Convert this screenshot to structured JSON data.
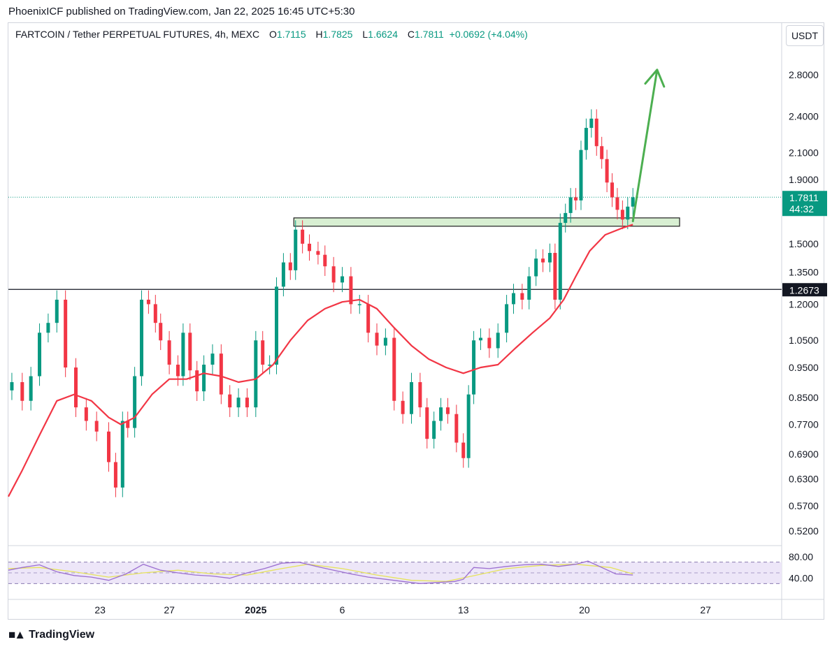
{
  "header": {
    "publisher_line": "PhoenixICF published on TradingView.com, Jan 22, 2025 16:45 UTC+5:30"
  },
  "legend": {
    "symbol": "FARTCOIN / Tether PERPETUAL FUTURES, 4h, MEXC",
    "open_label": "O",
    "open": "1.7115",
    "high_label": "H",
    "high": "1.7825",
    "low_label": "L",
    "low": "1.6624",
    "close_label": "C",
    "close": "1.7811",
    "change": "+0.0692 (+4.04%)"
  },
  "currency_button": "USDT",
  "price_badge": {
    "price": "1.7811",
    "countdown": "44:32"
  },
  "level_badge": "1.2673",
  "footer": {
    "brand": "TradingView"
  },
  "colors": {
    "up": "#089981",
    "down": "#f23645",
    "ma": "#f23645",
    "arrow": "#4caf50",
    "rsi": "#9c6fd0",
    "rsi_ma": "#e6e35a"
  },
  "chart_data": {
    "type": "candlestick",
    "instrument": "FARTCOIN / Tether PERPETUAL FUTURES",
    "timeframe": "4h",
    "exchange": "MEXC",
    "y_scale": "log",
    "y_ticks": [
      "2.8000",
      "2.4000",
      "2.1000",
      "1.9000",
      "1.5000",
      "1.3500",
      "1.2000",
      "1.0500",
      "0.9500",
      "0.8500",
      "0.7700",
      "0.6900",
      "0.6300",
      "0.5700",
      "0.5200"
    ],
    "x_ticks": [
      {
        "label": "23",
        "day": 23
      },
      {
        "label": "27",
        "day": 27
      },
      {
        "label": "2025",
        "day": 32
      },
      {
        "label": "6",
        "day": 37
      },
      {
        "label": "13",
        "day": 44
      },
      {
        "label": "20",
        "day": 51
      },
      {
        "label": "27",
        "day": 58
      }
    ],
    "x_range_days": [
      17.7,
      62.4
    ],
    "horizontal_level": 1.2673,
    "last_price": 1.7811,
    "resistance_zone": {
      "from_day": 34.2,
      "to_day": 56.5,
      "low": 1.6,
      "high": 1.65
    },
    "projection_arrow": {
      "from": {
        "day": 53.8,
        "price": 1.63
      },
      "to": {
        "day": 55.2,
        "price": 2.85
      }
    },
    "closes": [
      {
        "day": 17.9,
        "close": 0.9
      },
      {
        "day": 18.5,
        "close": 0.84
      },
      {
        "day": 19.0,
        "close": 0.92
      },
      {
        "day": 19.5,
        "close": 1.08
      },
      {
        "day": 20.0,
        "close": 1.12
      },
      {
        "day": 20.5,
        "close": 1.22
      },
      {
        "day": 21.0,
        "close": 0.95
      },
      {
        "day": 21.6,
        "close": 0.82
      },
      {
        "day": 22.2,
        "close": 0.78
      },
      {
        "day": 22.8,
        "close": 0.75
      },
      {
        "day": 23.5,
        "close": 0.67
      },
      {
        "day": 23.9,
        "close": 0.61
      },
      {
        "day": 24.3,
        "close": 0.78
      },
      {
        "day": 24.6,
        "close": 0.76
      },
      {
        "day": 25.0,
        "close": 0.92
      },
      {
        "day": 25.4,
        "close": 1.22
      },
      {
        "day": 25.8,
        "close": 1.2
      },
      {
        "day": 26.2,
        "close": 1.12
      },
      {
        "day": 26.5,
        "close": 1.05
      },
      {
        "day": 27.0,
        "close": 0.96
      },
      {
        "day": 27.5,
        "close": 0.92
      },
      {
        "day": 27.8,
        "close": 1.08
      },
      {
        "day": 28.2,
        "close": 0.94
      },
      {
        "day": 28.6,
        "close": 0.87
      },
      {
        "day": 29.0,
        "close": 0.96
      },
      {
        "day": 29.5,
        "close": 1.0
      },
      {
        "day": 30.0,
        "close": 0.86
      },
      {
        "day": 30.5,
        "close": 0.82
      },
      {
        "day": 31.0,
        "close": 0.85
      },
      {
        "day": 31.5,
        "close": 0.82
      },
      {
        "day": 32.0,
        "close": 1.05
      },
      {
        "day": 32.4,
        "close": 0.96
      },
      {
        "day": 32.8,
        "close": 0.96
      },
      {
        "day": 33.2,
        "close": 1.28
      },
      {
        "day": 33.6,
        "close": 1.4
      },
      {
        "day": 34.0,
        "close": 1.36
      },
      {
        "day": 34.3,
        "close": 1.58
      },
      {
        "day": 34.7,
        "close": 1.5
      },
      {
        "day": 35.1,
        "close": 1.46
      },
      {
        "day": 35.6,
        "close": 1.44
      },
      {
        "day": 36.0,
        "close": 1.38
      },
      {
        "day": 36.5,
        "close": 1.3
      },
      {
        "day": 37.0,
        "close": 1.33
      },
      {
        "day": 37.5,
        "close": 1.2
      },
      {
        "day": 38.0,
        "close": 1.2
      },
      {
        "day": 38.5,
        "close": 1.08
      },
      {
        "day": 39.0,
        "close": 1.03
      },
      {
        "day": 39.5,
        "close": 1.06
      },
      {
        "day": 40.0,
        "close": 0.84
      },
      {
        "day": 40.5,
        "close": 0.8
      },
      {
        "day": 41.0,
        "close": 0.9
      },
      {
        "day": 41.5,
        "close": 0.82
      },
      {
        "day": 41.9,
        "close": 0.73
      },
      {
        "day": 42.3,
        "close": 0.78
      },
      {
        "day": 42.7,
        "close": 0.82
      },
      {
        "day": 43.1,
        "close": 0.8
      },
      {
        "day": 43.6,
        "close": 0.72
      },
      {
        "day": 44.0,
        "close": 0.68
      },
      {
        "day": 44.3,
        "close": 0.86
      },
      {
        "day": 44.6,
        "close": 1.05
      },
      {
        "day": 45.0,
        "close": 1.06
      },
      {
        "day": 45.5,
        "close": 1.02
      },
      {
        "day": 46.0,
        "close": 1.08
      },
      {
        "day": 46.5,
        "close": 1.2
      },
      {
        "day": 46.9,
        "close": 1.25
      },
      {
        "day": 47.4,
        "close": 1.22
      },
      {
        "day": 47.8,
        "close": 1.33
      },
      {
        "day": 48.2,
        "close": 1.42
      },
      {
        "day": 48.6,
        "close": 1.4
      },
      {
        "day": 49.0,
        "close": 1.45
      },
      {
        "day": 49.3,
        "close": 1.22
      },
      {
        "day": 49.6,
        "close": 1.62
      },
      {
        "day": 49.9,
        "close": 1.68
      },
      {
        "day": 50.2,
        "close": 1.78
      },
      {
        "day": 50.5,
        "close": 1.76
      },
      {
        "day": 50.8,
        "close": 2.12
      },
      {
        "day": 51.1,
        "close": 2.3
      },
      {
        "day": 51.4,
        "close": 2.38
      },
      {
        "day": 51.7,
        "close": 2.15
      },
      {
        "day": 52.0,
        "close": 2.05
      },
      {
        "day": 52.3,
        "close": 1.88
      },
      {
        "day": 52.6,
        "close": 1.78
      },
      {
        "day": 52.9,
        "close": 1.7
      },
      {
        "day": 53.2,
        "close": 1.64
      },
      {
        "day": 53.5,
        "close": 1.72
      },
      {
        "day": 53.8,
        "close": 1.78
      }
    ],
    "moving_average": [
      {
        "day": 17.7,
        "value": 0.59
      },
      {
        "day": 18.5,
        "value": 0.65
      },
      {
        "day": 19.5,
        "value": 0.74
      },
      {
        "day": 20.5,
        "value": 0.84
      },
      {
        "day": 21.5,
        "value": 0.86
      },
      {
        "day": 22.5,
        "value": 0.84
      },
      {
        "day": 23.5,
        "value": 0.79
      },
      {
        "day": 24.2,
        "value": 0.77
      },
      {
        "day": 25.0,
        "value": 0.79
      },
      {
        "day": 26.0,
        "value": 0.86
      },
      {
        "day": 27.0,
        "value": 0.91
      },
      {
        "day": 28.0,
        "value": 0.91
      },
      {
        "day": 29.0,
        "value": 0.93
      },
      {
        "day": 30.0,
        "value": 0.92
      },
      {
        "day": 31.0,
        "value": 0.9
      },
      {
        "day": 32.0,
        "value": 0.91
      },
      {
        "day": 33.0,
        "value": 0.96
      },
      {
        "day": 34.0,
        "value": 1.05
      },
      {
        "day": 35.0,
        "value": 1.13
      },
      {
        "day": 36.0,
        "value": 1.18
      },
      {
        "day": 37.0,
        "value": 1.21
      },
      {
        "day": 38.0,
        "value": 1.22
      },
      {
        "day": 39.0,
        "value": 1.18
      },
      {
        "day": 40.0,
        "value": 1.1
      },
      {
        "day": 41.0,
        "value": 1.03
      },
      {
        "day": 42.0,
        "value": 0.98
      },
      {
        "day": 43.0,
        "value": 0.95
      },
      {
        "day": 44.0,
        "value": 0.93
      },
      {
        "day": 45.0,
        "value": 0.95
      },
      {
        "day": 46.0,
        "value": 0.96
      },
      {
        "day": 47.0,
        "value": 1.02
      },
      {
        "day": 48.0,
        "value": 1.08
      },
      {
        "day": 49.0,
        "value": 1.14
      },
      {
        "day": 49.8,
        "value": 1.22
      },
      {
        "day": 50.5,
        "value": 1.33
      },
      {
        "day": 51.3,
        "value": 1.46
      },
      {
        "day": 52.2,
        "value": 1.55
      },
      {
        "day": 53.2,
        "value": 1.59
      },
      {
        "day": 53.8,
        "value": 1.61
      }
    ],
    "rsi": {
      "upper_band": 70,
      "lower_band": 30,
      "ticks": [
        "80.00",
        "40.00"
      ],
      "values": [
        {
          "day": 17.7,
          "value": 55
        },
        {
          "day": 18.5,
          "value": 60
        },
        {
          "day": 19.5,
          "value": 65
        },
        {
          "day": 20.5,
          "value": 52
        },
        {
          "day": 21.5,
          "value": 45
        },
        {
          "day": 22.5,
          "value": 42
        },
        {
          "day": 23.5,
          "value": 36
        },
        {
          "day": 24.5,
          "value": 48
        },
        {
          "day": 25.5,
          "value": 66
        },
        {
          "day": 26.5,
          "value": 55
        },
        {
          "day": 27.5,
          "value": 50
        },
        {
          "day": 28.5,
          "value": 46
        },
        {
          "day": 29.5,
          "value": 44
        },
        {
          "day": 30.5,
          "value": 40
        },
        {
          "day": 31.5,
          "value": 50
        },
        {
          "day": 32.5,
          "value": 58
        },
        {
          "day": 33.5,
          "value": 68
        },
        {
          "day": 34.5,
          "value": 70
        },
        {
          "day": 35.5,
          "value": 62
        },
        {
          "day": 36.5,
          "value": 55
        },
        {
          "day": 37.5,
          "value": 48
        },
        {
          "day": 38.5,
          "value": 42
        },
        {
          "day": 39.5,
          "value": 38
        },
        {
          "day": 40.5,
          "value": 34
        },
        {
          "day": 41.5,
          "value": 30
        },
        {
          "day": 42.5,
          "value": 32
        },
        {
          "day": 43.5,
          "value": 34
        },
        {
          "day": 44.0,
          "value": 38
        },
        {
          "day": 44.6,
          "value": 60
        },
        {
          "day": 45.5,
          "value": 58
        },
        {
          "day": 46.5,
          "value": 62
        },
        {
          "day": 47.5,
          "value": 65
        },
        {
          "day": 48.5,
          "value": 66
        },
        {
          "day": 49.5,
          "value": 62
        },
        {
          "day": 50.5,
          "value": 66
        },
        {
          "day": 51.2,
          "value": 72
        },
        {
          "day": 52.0,
          "value": 60
        },
        {
          "day": 52.8,
          "value": 48
        },
        {
          "day": 53.8,
          "value": 46
        }
      ],
      "ma_values": [
        {
          "day": 17.7,
          "value": 58
        },
        {
          "day": 19.5,
          "value": 60
        },
        {
          "day": 21.5,
          "value": 52
        },
        {
          "day": 23.5,
          "value": 42
        },
        {
          "day": 25.5,
          "value": 50
        },
        {
          "day": 27.5,
          "value": 55
        },
        {
          "day": 29.5,
          "value": 48
        },
        {
          "day": 31.5,
          "value": 46
        },
        {
          "day": 33.5,
          "value": 58
        },
        {
          "day": 35.0,
          "value": 66
        },
        {
          "day": 37.0,
          "value": 58
        },
        {
          "day": 39.0,
          "value": 46
        },
        {
          "day": 41.0,
          "value": 36
        },
        {
          "day": 43.0,
          "value": 34
        },
        {
          "day": 44.5,
          "value": 44
        },
        {
          "day": 46.5,
          "value": 58
        },
        {
          "day": 48.5,
          "value": 64
        },
        {
          "day": 50.5,
          "value": 66
        },
        {
          "day": 52.5,
          "value": 60
        },
        {
          "day": 53.8,
          "value": 48
        }
      ]
    }
  }
}
